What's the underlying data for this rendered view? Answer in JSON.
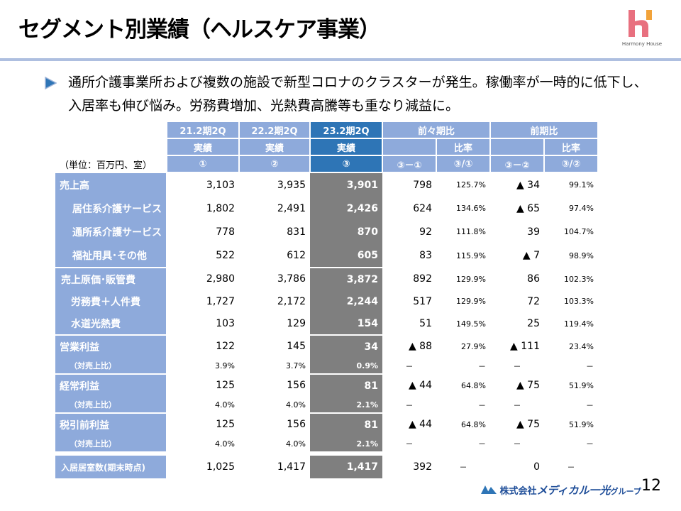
{
  "title": "セグメント別業績（ヘルスケア事業）",
  "logo": {
    "caption": "Harmony House",
    "colors": [
      "#e8707f",
      "#f2a33a"
    ]
  },
  "lead": "通所介護事業所および複数の施設で新型コロナのクラスターが発生。稼働率が一時的に低下し、入居率も伸び悩み。労務費増加、光熱費高騰等も重なり減益に。",
  "unit": "（単位：百万円、室）",
  "header": {
    "periods": [
      "21.2期2Q",
      "22.2期2Q",
      "23.2期2Q"
    ],
    "actual": "実績",
    "cmp1": "前々期比",
    "cmp2": "前期比",
    "ratio": "比率",
    "marks": [
      "①",
      "②",
      "③",
      "③－①",
      "③/①",
      "③－②",
      "③/②"
    ]
  },
  "rows": [
    {
      "label": "売上高",
      "kind": "main",
      "group_start": true,
      "values": [
        "3,103",
        "3,935",
        "3,901",
        "798",
        "125.7%",
        "▲ 34",
        "99.1%"
      ]
    },
    {
      "label": "居住系介護サービス",
      "kind": "sub1",
      "values": [
        "1,802",
        "2,491",
        "2,426",
        "624",
        "134.6%",
        "▲ 65",
        "97.4%"
      ]
    },
    {
      "label": "通所系介護サービス",
      "kind": "sub1",
      "values": [
        "778",
        "831",
        "870",
        "92",
        "111.8%",
        "39",
        "104.7%"
      ]
    },
    {
      "label": "福祉用具･その他",
      "kind": "sub1",
      "values": [
        "522",
        "612",
        "605",
        "83",
        "115.9%",
        "▲ 7",
        "98.9%"
      ]
    },
    {
      "label": "売上原価･販管費",
      "kind": "sub0b",
      "group_start": true,
      "values": [
        "2,980",
        "3,786",
        "3,872",
        "892",
        "129.9%",
        "86",
        "102.3%"
      ]
    },
    {
      "label": "労務費＋人件費",
      "kind": "sub2",
      "values": [
        "1,727",
        "2,172",
        "2,244",
        "517",
        "129.9%",
        "72",
        "103.3%"
      ]
    },
    {
      "label": "水道光熱費",
      "kind": "sub2",
      "values": [
        "103",
        "129",
        "154",
        "51",
        "149.5%",
        "25",
        "119.4%"
      ]
    },
    {
      "label": "営業利益",
      "kind": "main",
      "group_start": true,
      "values": [
        "122",
        "145",
        "34",
        "▲ 88",
        "27.9%",
        "▲ 111",
        "23.4%"
      ]
    },
    {
      "label": "（対売上比）",
      "kind": "ratio",
      "values": [
        "3.9%",
        "3.7%",
        "0.9%",
        "－",
        "－",
        "－",
        "－"
      ]
    },
    {
      "label": "経常利益",
      "kind": "main",
      "group_start": true,
      "values": [
        "125",
        "156",
        "81",
        "▲ 44",
        "64.8%",
        "▲ 75",
        "51.9%"
      ]
    },
    {
      "label": "（対売上比）",
      "kind": "ratio",
      "values": [
        "4.0%",
        "4.0%",
        "2.1%",
        "－",
        "－",
        "－",
        "－"
      ]
    },
    {
      "label": "税引前利益",
      "kind": "main",
      "group_start": true,
      "values": [
        "125",
        "156",
        "81",
        "▲ 44",
        "64.8%",
        "▲ 75",
        "51.9%"
      ]
    },
    {
      "label": "（対売上比）",
      "kind": "ratio",
      "values": [
        "4.0%",
        "4.0%",
        "2.1%",
        "－",
        "－",
        "－",
        "－"
      ]
    },
    {
      "label": "入居居室数(期末時点)",
      "kind": "rooms",
      "group_start": true,
      "values": [
        "1,025",
        "1,417",
        "1,417",
        "392",
        "－",
        "0",
        "－"
      ]
    }
  ],
  "footer": {
    "company_prefix": "株式会社",
    "company_name": "メディカル一光",
    "company_suffix": "グループ",
    "page": "12"
  }
}
